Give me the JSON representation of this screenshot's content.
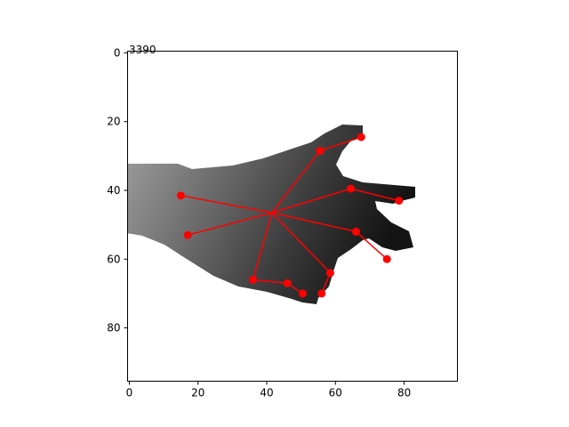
{
  "chart_data": {
    "type": "scatter",
    "title": "3390",
    "xlabel": "",
    "ylabel": "",
    "xlim": [
      -0.5,
      95.5
    ],
    "ylim": [
      95.5,
      -0.5
    ],
    "y_inverted": true,
    "grid": false,
    "x_ticks": [
      0,
      20,
      40,
      60,
      80
    ],
    "y_ticks": [
      0,
      20,
      40,
      60,
      80
    ],
    "background": "depth image of a hand (grayscale)",
    "colors": {
      "skeleton": "#ff0000",
      "hand_light": "#9a9a9a",
      "hand_dark": "#101010"
    },
    "keypoints": [
      {
        "x": 41.5,
        "y": 46.5
      },
      {
        "x": 67.5,
        "y": 24.5
      },
      {
        "x": 55.5,
        "y": 28.5
      },
      {
        "x": 78.5,
        "y": 43.0
      },
      {
        "x": 64.5,
        "y": 39.5
      },
      {
        "x": 75.0,
        "y": 60.0
      },
      {
        "x": 66.0,
        "y": 52.0
      },
      {
        "x": 56.0,
        "y": 70.0
      },
      {
        "x": 58.5,
        "y": 64.0
      },
      {
        "x": 50.5,
        "y": 70.0
      },
      {
        "x": 46.0,
        "y": 67.0
      },
      {
        "x": 36.0,
        "y": 66.0
      },
      {
        "x": 15.0,
        "y": 41.5
      },
      {
        "x": 17.0,
        "y": 53.0
      }
    ],
    "bones": [
      [
        0,
        2
      ],
      [
        2,
        1
      ],
      [
        0,
        4
      ],
      [
        4,
        3
      ],
      [
        0,
        6
      ],
      [
        6,
        5
      ],
      [
        0,
        8
      ],
      [
        8,
        7
      ],
      [
        0,
        11
      ],
      [
        11,
        10
      ],
      [
        10,
        9
      ],
      [
        0,
        12
      ],
      [
        0,
        13
      ]
    ]
  }
}
